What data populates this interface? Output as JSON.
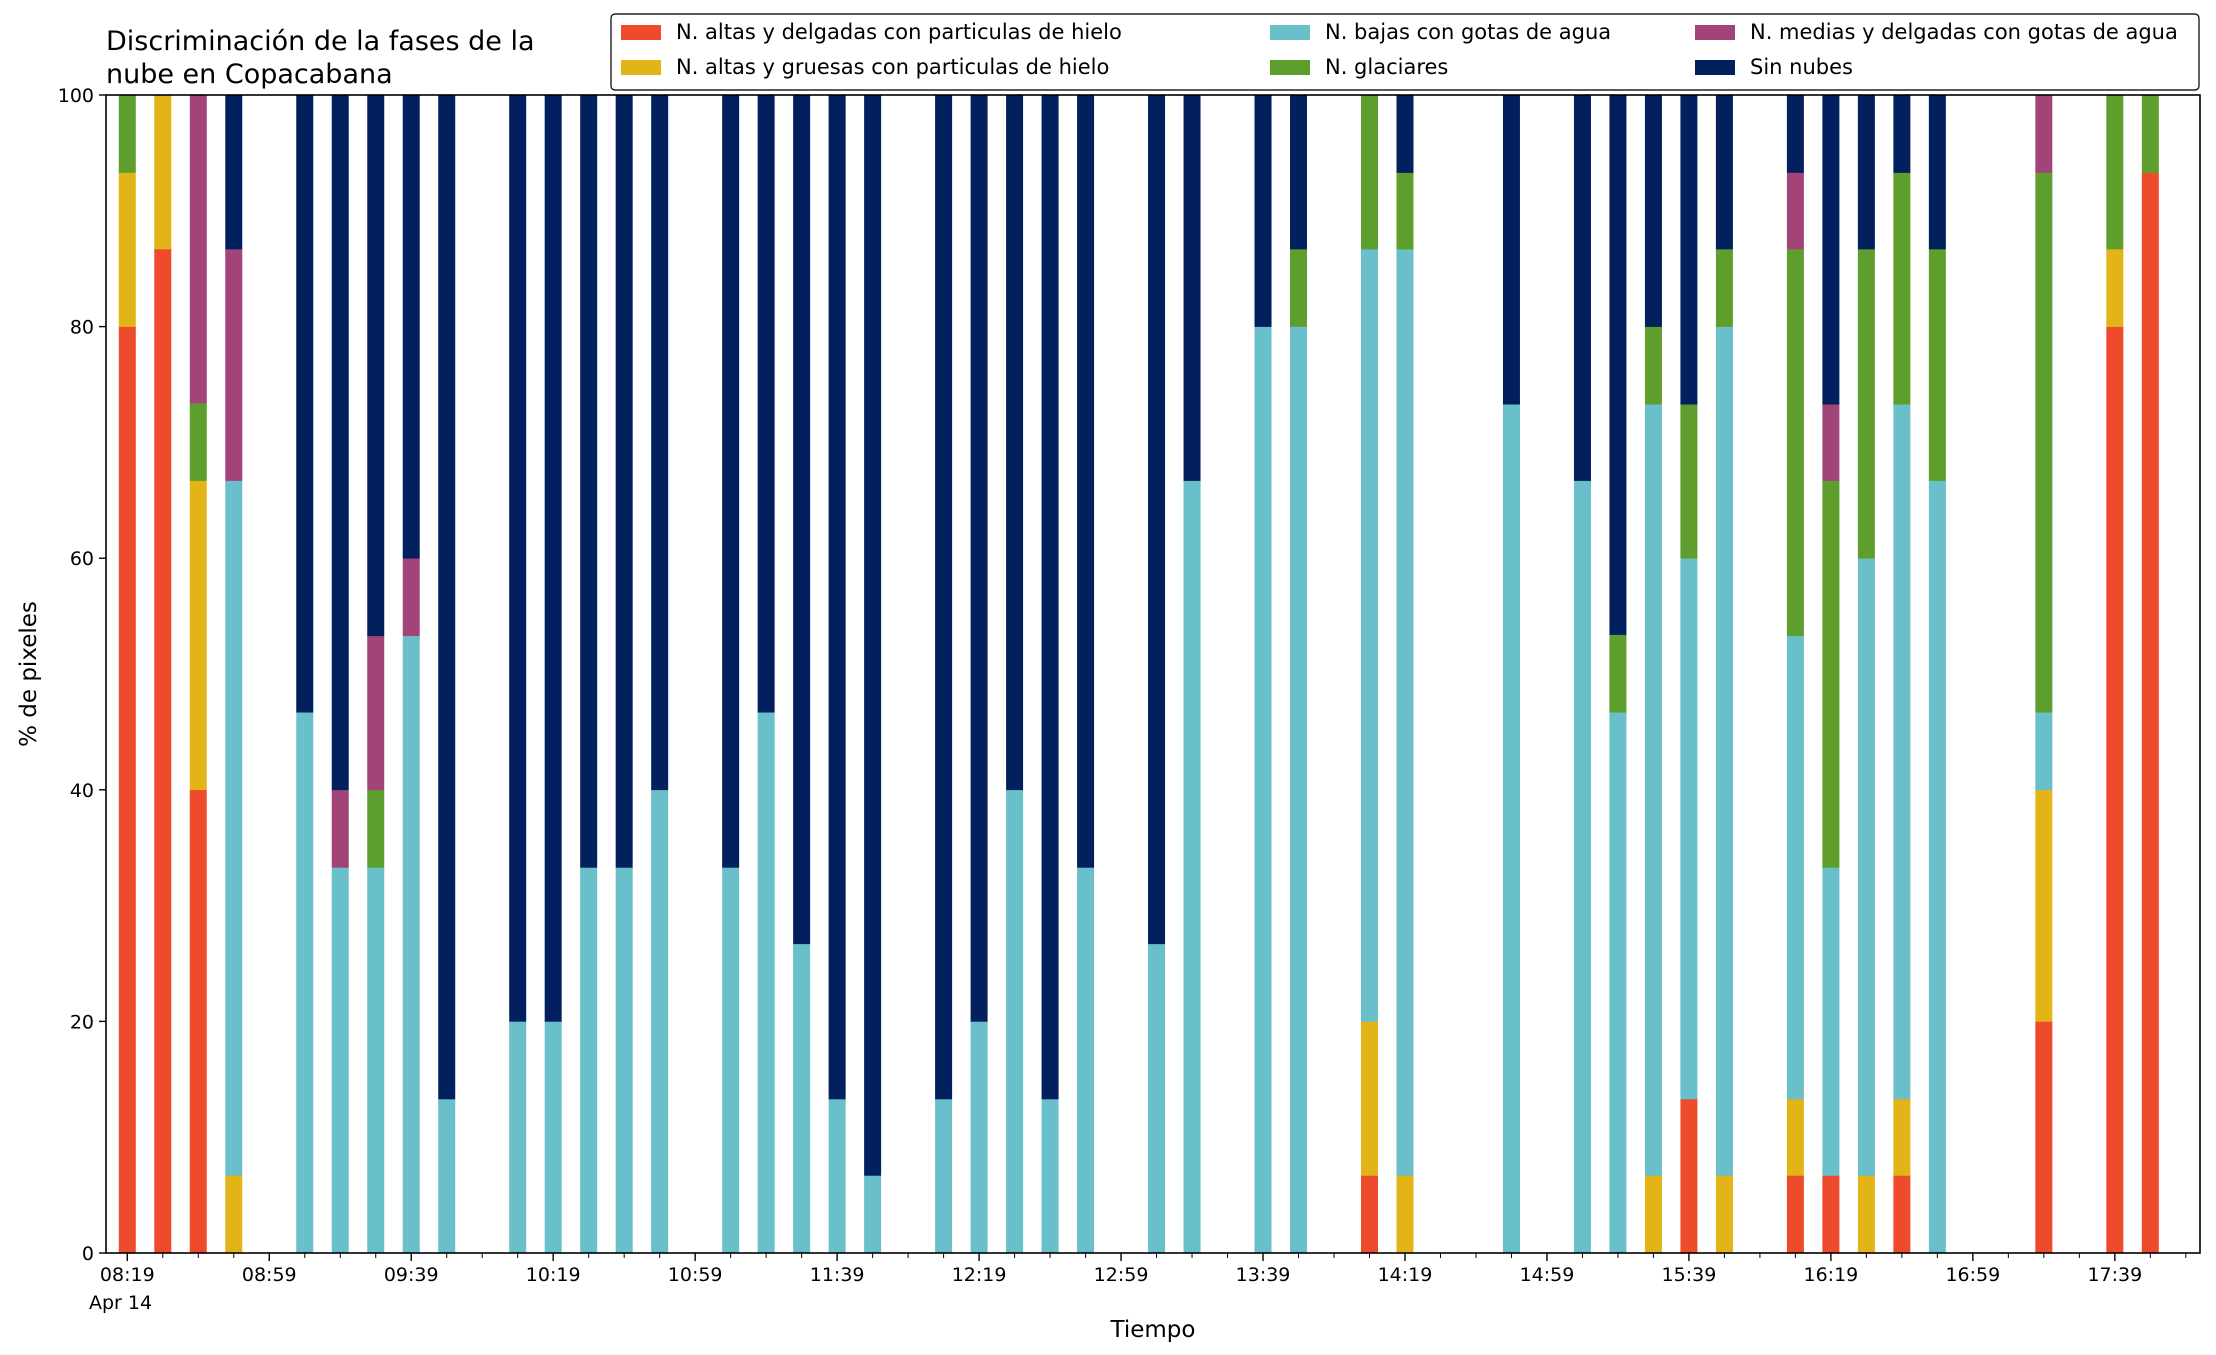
{
  "chart_data": {
    "type": "bar",
    "stacked": true,
    "title_lines": [
      "Discriminación de la fases de la",
      "nube en Copacabana"
    ],
    "xlabel": "Tiempo",
    "ylabel": "% de pixeles",
    "ylim": [
      0,
      100
    ],
    "yticks": [
      "0",
      "20",
      "40",
      "60",
      "80",
      "100"
    ],
    "xticks": [
      "08:19",
      "08:59",
      "09:39",
      "10:19",
      "10:59",
      "11:39",
      "12:19",
      "12:59",
      "13:39",
      "14:19",
      "14:59",
      "15:39",
      "16:19",
      "16:59",
      "17:39"
    ],
    "xtick_sublabel": "Apr 14",
    "x_range_slots": [
      -0.6,
      58.4
    ],
    "grid": false,
    "legend_position": "top-right",
    "series": [
      {
        "name": "N. altas y delgadas con particulas de hielo",
        "color": "#ee4a2c"
      },
      {
        "name": "N. altas y gruesas con particulas de hielo",
        "color": "#e3b418"
      },
      {
        "name": "N. bajas con gotas de agua",
        "color": "#69bfca"
      },
      {
        "name": "N. glaciares",
        "color": "#5d9e2c"
      },
      {
        "name": "N. medias y delgadas con gotas de agua",
        "color": "#a24477"
      },
      {
        "name": "Sin nubes",
        "color": "#021f5e"
      }
    ],
    "bars": [
      {
        "slot": 0,
        "values": [
          80,
          13.3,
          0,
          6.7,
          0,
          0
        ]
      },
      {
        "slot": 1,
        "values": [
          86.7,
          13.3,
          0,
          0,
          0,
          0
        ]
      },
      {
        "slot": 2,
        "values": [
          40,
          26.7,
          0,
          6.7,
          26.6,
          0
        ]
      },
      {
        "slot": 3,
        "values": [
          0,
          6.7,
          60,
          0,
          20,
          13.3
        ]
      },
      {
        "slot": 5,
        "values": [
          0,
          0,
          46.7,
          0,
          0,
          53.3
        ]
      },
      {
        "slot": 6,
        "values": [
          0,
          0,
          33.3,
          0,
          6.7,
          60
        ]
      },
      {
        "slot": 7,
        "values": [
          0,
          0,
          33.3,
          6.7,
          13.3,
          46.7
        ]
      },
      {
        "slot": 8,
        "values": [
          0,
          0,
          53.3,
          0,
          6.7,
          40
        ]
      },
      {
        "slot": 9,
        "values": [
          0,
          0,
          13.3,
          0,
          0,
          86.7
        ]
      },
      {
        "slot": 11,
        "values": [
          0,
          0,
          20,
          0,
          0,
          80
        ]
      },
      {
        "slot": 12,
        "values": [
          0,
          0,
          20,
          0,
          0,
          80
        ]
      },
      {
        "slot": 13,
        "values": [
          0,
          0,
          33.3,
          0,
          0,
          66.7
        ]
      },
      {
        "slot": 14,
        "values": [
          0,
          0,
          33.3,
          0,
          0,
          66.7
        ]
      },
      {
        "slot": 15,
        "values": [
          0,
          0,
          40,
          0,
          0,
          60
        ]
      },
      {
        "slot": 17,
        "values": [
          0,
          0,
          33.3,
          0,
          0,
          66.7
        ]
      },
      {
        "slot": 18,
        "values": [
          0,
          0,
          46.7,
          0,
          0,
          53.3
        ]
      },
      {
        "slot": 19,
        "values": [
          0,
          0,
          26.7,
          0,
          0,
          73.3
        ]
      },
      {
        "slot": 20,
        "values": [
          0,
          0,
          13.3,
          0,
          0,
          86.7
        ]
      },
      {
        "slot": 21,
        "values": [
          0,
          0,
          6.7,
          0,
          0,
          93.3
        ]
      },
      {
        "slot": 23,
        "values": [
          0,
          0,
          13.3,
          0,
          0,
          86.7
        ]
      },
      {
        "slot": 24,
        "values": [
          0,
          0,
          20,
          0,
          0,
          80
        ]
      },
      {
        "slot": 25,
        "values": [
          0,
          0,
          40,
          0,
          0,
          60
        ]
      },
      {
        "slot": 26,
        "values": [
          0,
          0,
          13.3,
          0,
          0,
          86.7
        ]
      },
      {
        "slot": 27,
        "values": [
          0,
          0,
          33.3,
          0,
          0,
          66.7
        ]
      },
      {
        "slot": 29,
        "values": [
          0,
          0,
          26.7,
          0,
          0,
          73.3
        ]
      },
      {
        "slot": 30,
        "values": [
          0,
          0,
          66.7,
          0,
          0,
          33.3
        ]
      },
      {
        "slot": 32,
        "values": [
          0,
          0,
          80,
          0,
          0,
          20
        ]
      },
      {
        "slot": 33,
        "values": [
          0,
          0,
          80,
          6.7,
          0,
          13.3
        ]
      },
      {
        "slot": 35,
        "values": [
          6.7,
          13.3,
          66.7,
          13.3,
          0,
          0
        ]
      },
      {
        "slot": 36,
        "values": [
          0,
          6.7,
          80,
          6.6,
          0,
          6.7
        ]
      },
      {
        "slot": 39,
        "values": [
          0,
          0,
          73.3,
          0,
          0,
          26.7
        ]
      },
      {
        "slot": 41,
        "values": [
          0,
          0,
          66.7,
          0,
          0,
          33.3
        ]
      },
      {
        "slot": 42,
        "values": [
          0,
          0,
          46.7,
          6.7,
          0,
          46.6
        ]
      },
      {
        "slot": 43,
        "values": [
          0,
          6.7,
          66.6,
          6.7,
          0,
          20
        ]
      },
      {
        "slot": 44,
        "values": [
          13.3,
          0,
          46.7,
          13.3,
          0,
          26.7
        ]
      },
      {
        "slot": 45,
        "values": [
          0,
          6.7,
          73.3,
          6.7,
          0,
          13.3
        ]
      },
      {
        "slot": 47,
        "values": [
          6.7,
          6.6,
          40,
          33.4,
          6.6,
          6.7
        ]
      },
      {
        "slot": 48,
        "values": [
          6.7,
          0,
          26.6,
          33.4,
          6.6,
          26.7
        ]
      },
      {
        "slot": 49,
        "values": [
          0,
          6.7,
          53.3,
          26.7,
          0,
          13.3
        ]
      },
      {
        "slot": 50,
        "values": [
          6.7,
          6.6,
          60,
          20,
          0,
          6.7
        ]
      },
      {
        "slot": 51,
        "values": [
          0,
          0,
          66.7,
          20,
          0,
          13.3
        ]
      },
      {
        "slot": 54,
        "values": [
          20,
          20,
          6.7,
          46.6,
          6.7,
          0
        ]
      },
      {
        "slot": 56,
        "values": [
          80,
          6.7,
          0,
          13.3,
          0,
          0
        ]
      },
      {
        "slot": 57,
        "values": [
          93.3,
          0,
          0,
          6.7,
          0,
          0
        ]
      }
    ]
  }
}
